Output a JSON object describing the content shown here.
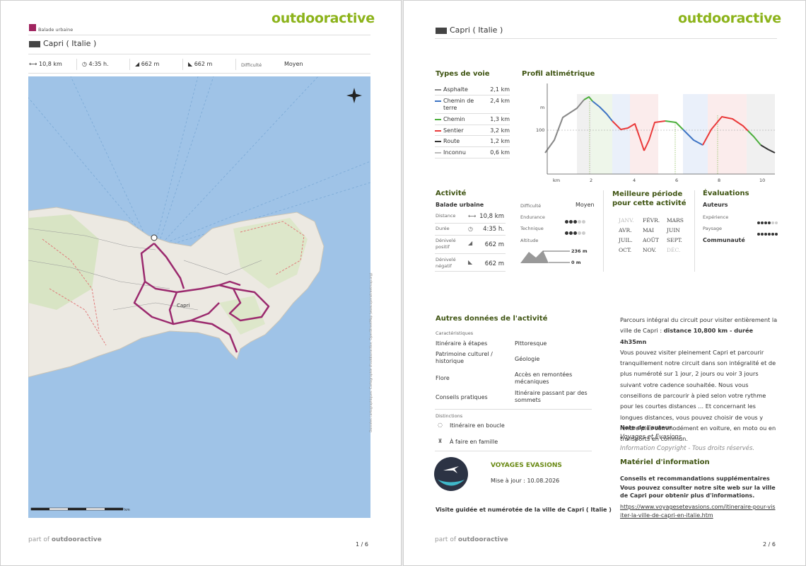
{
  "page1": {
    "logo": "outdooractive",
    "category": "Balade urbaine",
    "title": "Capri ( Italie )",
    "stats": {
      "distance": "10,8 km",
      "duration": "4:35 h.",
      "ascent": "662 m",
      "descent": "662 m",
      "difficulty_label": "Difficulté",
      "difficulty": "Moyen"
    },
    "map": {
      "place": "Capri",
      "scale_unit": "km",
      "attribution": "Données cartographiques: Cartographie d'outdooractive, OpenStreetMap (www.openstreetmap.org)"
    },
    "footer": {
      "prefix": "part of",
      "brand": "outdooractive",
      "page": "1 / 6"
    }
  },
  "page2": {
    "logo": "outdooractive",
    "title": "Capri ( Italie )",
    "surfaces": {
      "title": "Types de voie",
      "rows": [
        {
          "name": "Asphalte",
          "length": "2,1 km"
        },
        {
          "name": "Chemin de terre",
          "length": "2,4 km"
        },
        {
          "name": "Chemin",
          "length": "1,3 km"
        },
        {
          "name": "Sentier",
          "length": "3,2 km"
        },
        {
          "name": "Route",
          "length": "1,2 km"
        },
        {
          "name": "Inconnu",
          "length": "0,6 km"
        }
      ]
    },
    "profile": {
      "title": "Profil altimétrique",
      "y_unit": "m",
      "y_tick": "100",
      "x_unit": "km",
      "x_ticks": [
        "2",
        "4",
        "6",
        "8",
        "10"
      ]
    },
    "activity": {
      "title": "Activité",
      "type": "Balade urbaine",
      "rows": [
        {
          "label": "Distance",
          "value": "10,8 km"
        },
        {
          "label": "Durée",
          "value": "4:35 h."
        },
        {
          "label": "Dénivelé positif",
          "value": "662 m"
        },
        {
          "label": "Dénivelé négatif",
          "value": "662 m"
        }
      ]
    },
    "difficulty": {
      "label": "Difficulté",
      "value": "Moyen",
      "endurance": "Endurance",
      "technique": "Technique",
      "altitude": "Altitude",
      "alt_max": "236 m",
      "alt_min": "0 m"
    },
    "season": {
      "title": "Meilleure période pour cette activité",
      "months": [
        "JANV.",
        "FÉVR.",
        "MARS",
        "AVR.",
        "MAI",
        "JUIN",
        "JUIL.",
        "AOÛT",
        "SEPT.",
        "OCT.",
        "NOV.",
        "DÉC."
      ]
    },
    "ratings": {
      "title": "Évaluations",
      "authors": "Auteurs",
      "experience": "Expérience",
      "landscape": "Paysage",
      "community": "Communauté"
    },
    "other": {
      "title": "Autres données de l'activité",
      "features_title": "Caractéristiques",
      "features": [
        "Itinéraire à étapes",
        "Pittoresque",
        "Patrimoine culturel / historique",
        "Géologie",
        "Flore",
        "Accès en remontées mécaniques",
        "Conseils pratiques",
        "Itinéraire passant par des sommets"
      ],
      "awards_title": "Distinctions",
      "awards": [
        "Itinéraire en boucle",
        "À faire en famille"
      ]
    },
    "author": {
      "name": "VOYAGES EVASIONS",
      "updated": "Mise à jour : 10.08.2026",
      "description": "Visite guidée et numérotée de la ville de Capri ( Italie )"
    },
    "text": {
      "intro": "Parcours intégral du circuit pour visiter entièrement la ville de Capri : ",
      "intro_bold": "distance 10,800 km - durée 4h35mn",
      "body": "Vous pouvez visiter pleinement Capri et parcourir tranquillement notre circuit dans son intégralité et de plus numéroté sur 1 jour, 2 jours ou voir 3 jours suivant votre cadence souhaitée. Nous vous conseillons de parcourir à pied selon votre rythme pour les courtes distances ... Et concernant les longues distances, vous pouvez choisir de vous y rendre plus commodément en voiture, en moto ou en transports en commun.",
      "note_title": "Note de l'auteur",
      "note_author": "Voyages et Evasions",
      "copyright": "Information Copyright - Tous droits réservés.",
      "info_title": "Matériel d'information",
      "tips_title": "Conseils et recommandations supplémentaires",
      "tips": "Vous pouvez consulter notre site web sur la ville de Capri pour obtenir plus d'informations.",
      "link": "https://www.voyagesetevasions.com/itineraire-pour-visiter-la-ville-de-capri-en-italie.htm"
    },
    "footer": {
      "prefix": "part of",
      "brand": "outdooractive",
      "page": "2 / 6"
    }
  }
}
